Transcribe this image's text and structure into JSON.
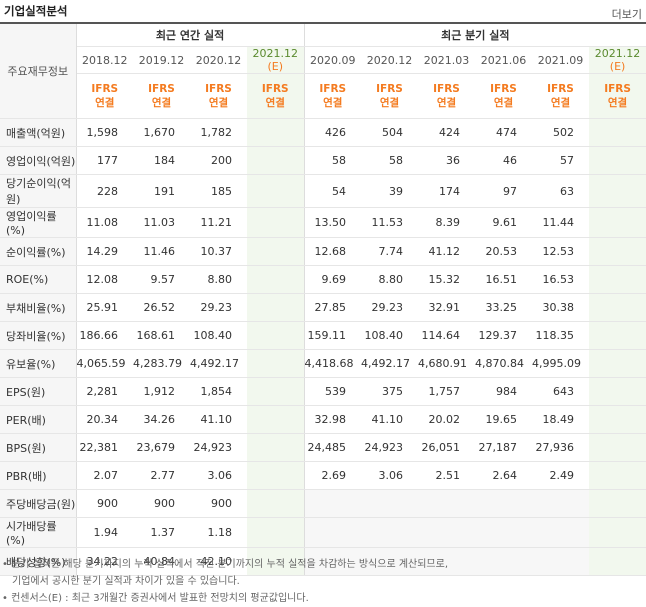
{
  "header": {
    "title": "기업실적분석",
    "more": "더보기"
  },
  "table": {
    "label_header": "주요재무정보",
    "groups": {
      "annual": "최근 연간 실적",
      "quarter": "최근 분기 실적"
    },
    "periods": [
      {
        "label": "2018.12",
        "est": ""
      },
      {
        "label": "2019.12",
        "est": ""
      },
      {
        "label": "2020.12",
        "est": ""
      },
      {
        "label": "2021.12",
        "est": "(E)"
      },
      {
        "label": "2020.09",
        "est": ""
      },
      {
        "label": "2020.12",
        "est": ""
      },
      {
        "label": "2021.03",
        "est": ""
      },
      {
        "label": "2021.06",
        "est": ""
      },
      {
        "label": "2021.09",
        "est": ""
      },
      {
        "label": "2021.12",
        "est": "(E)"
      }
    ],
    "ifrs_line1": "IFRS",
    "ifrs_line2": "연결",
    "rows": [
      {
        "label": "매출액(억원)",
        "values": [
          "1,598",
          "1,670",
          "1,782",
          "",
          "426",
          "504",
          "424",
          "474",
          "502",
          ""
        ]
      },
      {
        "label": "영업이익(억원)",
        "values": [
          "177",
          "184",
          "200",
          "",
          "58",
          "58",
          "36",
          "46",
          "57",
          ""
        ]
      },
      {
        "label": "당기순이익(억원)",
        "values": [
          "228",
          "191",
          "185",
          "",
          "54",
          "39",
          "174",
          "97",
          "63",
          ""
        ]
      },
      {
        "label": "영업이익률(%)",
        "values": [
          "11.08",
          "11.03",
          "11.21",
          "",
          "13.50",
          "11.53",
          "8.39",
          "9.61",
          "11.44",
          ""
        ]
      },
      {
        "label": "순이익률(%)",
        "values": [
          "14.29",
          "11.46",
          "10.37",
          "",
          "12.68",
          "7.74",
          "41.12",
          "20.53",
          "12.53",
          ""
        ]
      },
      {
        "label": "ROE(%)",
        "values": [
          "12.08",
          "9.57",
          "8.80",
          "",
          "9.69",
          "8.80",
          "15.32",
          "16.51",
          "16.53",
          ""
        ]
      },
      {
        "label": "부채비율(%)",
        "values": [
          "25.91",
          "26.52",
          "29.23",
          "",
          "27.85",
          "29.23",
          "32.91",
          "33.25",
          "30.38",
          ""
        ]
      },
      {
        "label": "당좌비율(%)",
        "values": [
          "186.66",
          "168.61",
          "108.40",
          "",
          "159.11",
          "108.40",
          "114.64",
          "129.37",
          "118.35",
          ""
        ]
      },
      {
        "label": "유보율(%)",
        "values": [
          "4,065.59",
          "4,283.79",
          "4,492.17",
          "",
          "4,418.68",
          "4,492.17",
          "4,680.91",
          "4,870.84",
          "4,995.09",
          ""
        ]
      },
      {
        "label": "EPS(원)",
        "values": [
          "2,281",
          "1,912",
          "1,854",
          "",
          "539",
          "375",
          "1,757",
          "984",
          "643",
          ""
        ]
      },
      {
        "label": "PER(배)",
        "values": [
          "20.34",
          "34.26",
          "41.10",
          "",
          "32.98",
          "41.10",
          "20.02",
          "19.65",
          "18.49",
          ""
        ]
      },
      {
        "label": "BPS(원)",
        "values": [
          "22,381",
          "23,679",
          "24,923",
          "",
          "24,485",
          "24,923",
          "26,051",
          "27,187",
          "27,936",
          ""
        ]
      },
      {
        "label": "PBR(배)",
        "values": [
          "2.07",
          "2.77",
          "3.06",
          "",
          "2.69",
          "3.06",
          "2.51",
          "2.64",
          "2.49",
          ""
        ]
      },
      {
        "label": "주당배당금(원)",
        "values": [
          "900",
          "900",
          "900",
          "",
          "",
          "",
          "",
          "",
          "",
          ""
        ]
      },
      {
        "label": "시가배당률(%)",
        "values": [
          "1.94",
          "1.37",
          "1.18",
          "",
          "",
          "",
          "",
          "",
          "",
          ""
        ]
      },
      {
        "label": "배당성향(%)",
        "values": [
          "34.22",
          "40.84",
          "42.10",
          "",
          "",
          "",
          "",
          "",
          "",
          ""
        ]
      }
    ]
  },
  "notes": {
    "line1": "• 분기 실적은 해당 분기까지의 누적 실적에서 직전 분기까지의 누적 실적을 차감하는 방식으로 계산되므로,",
    "line2": "기업에서 공시한 분기 실적과 차이가 있을 수 있습니다.",
    "line3": "• 컨센서스(E) : 최근 3개월간 증권사에서 발표한 전망치의 평균값입니다."
  }
}
